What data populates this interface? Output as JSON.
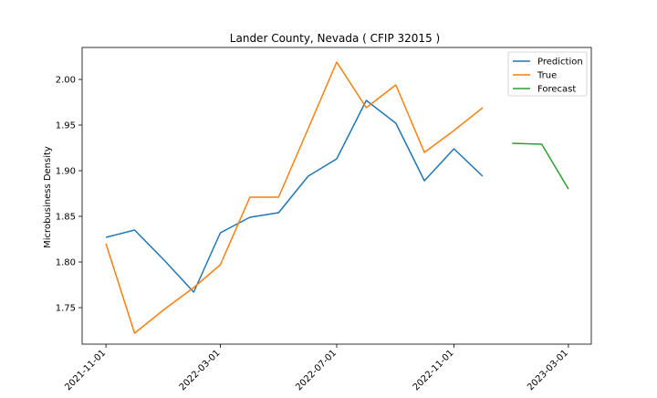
{
  "chart_data": {
    "type": "line",
    "title": "Lander County, Nevada ( CFIP 32015 )",
    "xlabel": "",
    "ylabel": "Microbusiness Density",
    "ylim": [
      1.71,
      2.035
    ],
    "xlim": [
      "2021-10-07",
      "2023-03-25"
    ],
    "x_ticks": [
      "2021-11-01",
      "2022-03-01",
      "2022-07-01",
      "2022-11-01",
      "2023-03-01"
    ],
    "y_ticks": [
      1.75,
      1.8,
      1.85,
      1.9,
      1.95,
      2.0
    ],
    "y_tick_labels": [
      "1.75",
      "1.80",
      "1.85",
      "1.90",
      "1.95",
      "2.00"
    ],
    "grid": false,
    "legend_position": "top-right",
    "series": [
      {
        "name": "Prediction",
        "color": "#1f77b4",
        "x": [
          "2021-11-01",
          "2021-12-01",
          "2022-01-01",
          "2022-02-01",
          "2022-03-01",
          "2022-04-01",
          "2022-05-01",
          "2022-06-01",
          "2022-07-01",
          "2022-08-01",
          "2022-09-01",
          "2022-10-01",
          "2022-11-01",
          "2022-12-01"
        ],
        "values": [
          1.827,
          1.835,
          1.802,
          1.767,
          1.832,
          1.849,
          1.854,
          1.894,
          1.913,
          1.977,
          1.952,
          1.889,
          1.924,
          1.894
        ]
      },
      {
        "name": "True",
        "color": "#ff7f0e",
        "x": [
          "2021-11-01",
          "2021-12-01",
          "2022-01-01",
          "2022-02-01",
          "2022-03-01",
          "2022-04-01",
          "2022-05-01",
          "2022-06-01",
          "2022-07-01",
          "2022-08-01",
          "2022-09-01",
          "2022-10-01",
          "2022-11-01",
          "2022-12-01"
        ],
        "values": [
          1.82,
          1.722,
          1.748,
          1.772,
          1.797,
          1.871,
          1.871,
          1.946,
          2.019,
          1.969,
          1.994,
          1.92,
          1.944,
          1.969
        ]
      },
      {
        "name": "Forecast",
        "color": "#2ca02c",
        "x": [
          "2023-01-01",
          "2023-02-01",
          "2023-03-01"
        ],
        "values": [
          1.93,
          1.929,
          1.88
        ]
      }
    ]
  }
}
